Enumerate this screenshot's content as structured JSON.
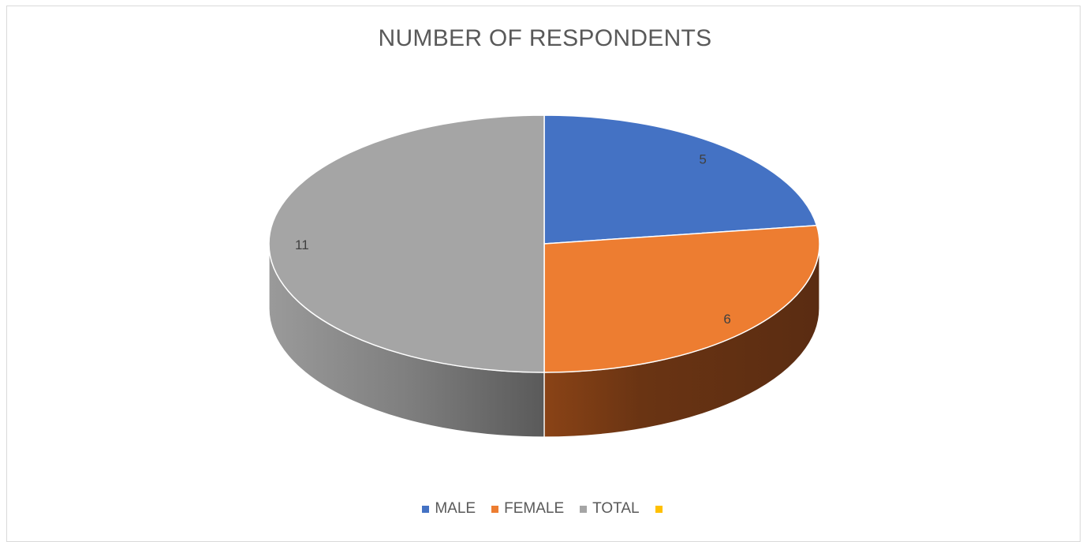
{
  "chart_data": {
    "type": "pie",
    "title": "NUMBER OF RESPONDENTS",
    "categories": [
      "MALE",
      "FEMALE",
      "TOTAL",
      ""
    ],
    "values": [
      5,
      6,
      11,
      0
    ],
    "colors": [
      "#4472C4",
      "#ED7D31",
      "#A5A5A5",
      "#FFC000"
    ],
    "legend_position": "bottom",
    "three_d": true,
    "data_labels": true
  }
}
